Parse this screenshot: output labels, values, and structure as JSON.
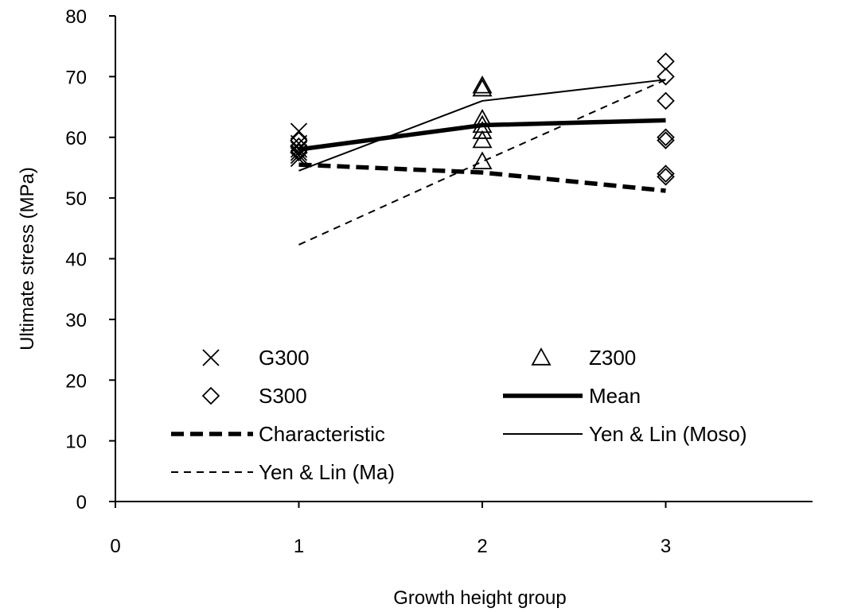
{
  "chart_data": {
    "type": "scatter",
    "xlabel": "Growth height group",
    "ylabel": "Ultimate stress (MPa)",
    "xlim": [
      0,
      3.8
    ],
    "ylim": [
      0,
      80
    ],
    "xticks": [
      "0",
      "1",
      "2",
      "3"
    ],
    "yticks": [
      "0",
      "10",
      "20",
      "30",
      "40",
      "50",
      "60",
      "70",
      "80"
    ],
    "grid": false,
    "legend_position": "lower-center (inside plot)",
    "scatter_series": [
      {
        "name": "G300",
        "marker": "cross",
        "points": [
          [
            1,
            61.0
          ],
          [
            1,
            59.0
          ],
          [
            1,
            58.0
          ],
          [
            1,
            57.5
          ],
          [
            1,
            57.0
          ],
          [
            1,
            56.5
          ]
        ]
      },
      {
        "name": "Z300",
        "marker": "triangle",
        "points": [
          [
            2,
            68.5
          ],
          [
            2,
            68.0
          ],
          [
            2,
            63.0
          ],
          [
            2,
            62.0
          ],
          [
            2,
            61.0
          ],
          [
            2,
            59.5
          ],
          [
            2,
            56.0
          ]
        ]
      },
      {
        "name": "S300",
        "marker": "diamond",
        "points": [
          [
            1,
            59.5
          ],
          [
            1,
            58.5
          ],
          [
            1,
            57.5
          ],
          [
            3,
            72.5
          ],
          [
            3,
            70.0
          ],
          [
            3,
            66.0
          ],
          [
            3,
            60.0
          ],
          [
            3,
            59.5
          ],
          [
            3,
            54.0
          ],
          [
            3,
            53.5
          ]
        ]
      }
    ],
    "line_series": [
      {
        "name": "Mean",
        "style": "thick-solid",
        "x": [
          1,
          2,
          3
        ],
        "y": [
          58.0,
          62.0,
          62.8
        ]
      },
      {
        "name": "Characteristic",
        "style": "thick-dashed",
        "x": [
          1,
          2,
          3
        ],
        "y": [
          55.5,
          54.2,
          51.2
        ]
      },
      {
        "name": "Yen & Lin (Moso)",
        "style": "thin-solid",
        "x": [
          1,
          2,
          3
        ],
        "y": [
          54.5,
          66.0,
          69.5
        ]
      },
      {
        "name": "Yen & Lin (Ma)",
        "style": "thin-dashed",
        "x": [
          1,
          2,
          3
        ],
        "y": [
          42.3,
          56.0,
          69.5
        ]
      }
    ]
  }
}
